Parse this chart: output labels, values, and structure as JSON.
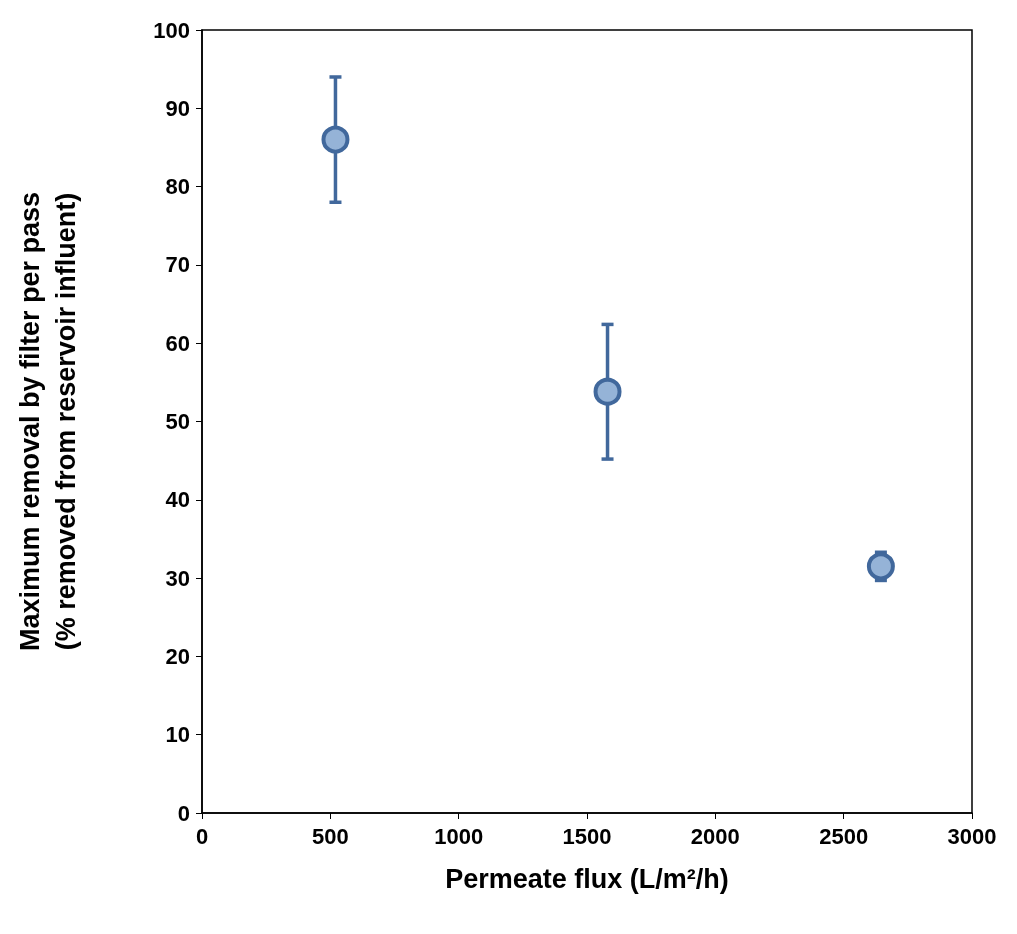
{
  "chart_data": {
    "type": "scatter",
    "xlabel": "Permeate flux (L/m²/h)",
    "ylabel": "Maximum removal by filter per pass\n(% removed from reservoir influent)",
    "x": [
      520,
      1580,
      2645
    ],
    "series": [
      {
        "color": "#95b3d7",
        "values": [
          86,
          53.8,
          31.5
        ],
        "errors": [
          8,
          8.6,
          1.8
        ]
      }
    ],
    "xlim": [
      0,
      3000
    ],
    "xticks": [
      0,
      500,
      1000,
      1500,
      2000,
      2500,
      3000
    ],
    "ylim": [
      0,
      100
    ],
    "yticks": [
      0,
      10,
      20,
      30,
      40,
      50,
      60,
      70,
      80,
      90,
      100
    ],
    "grid": false,
    "marker": "circle"
  }
}
